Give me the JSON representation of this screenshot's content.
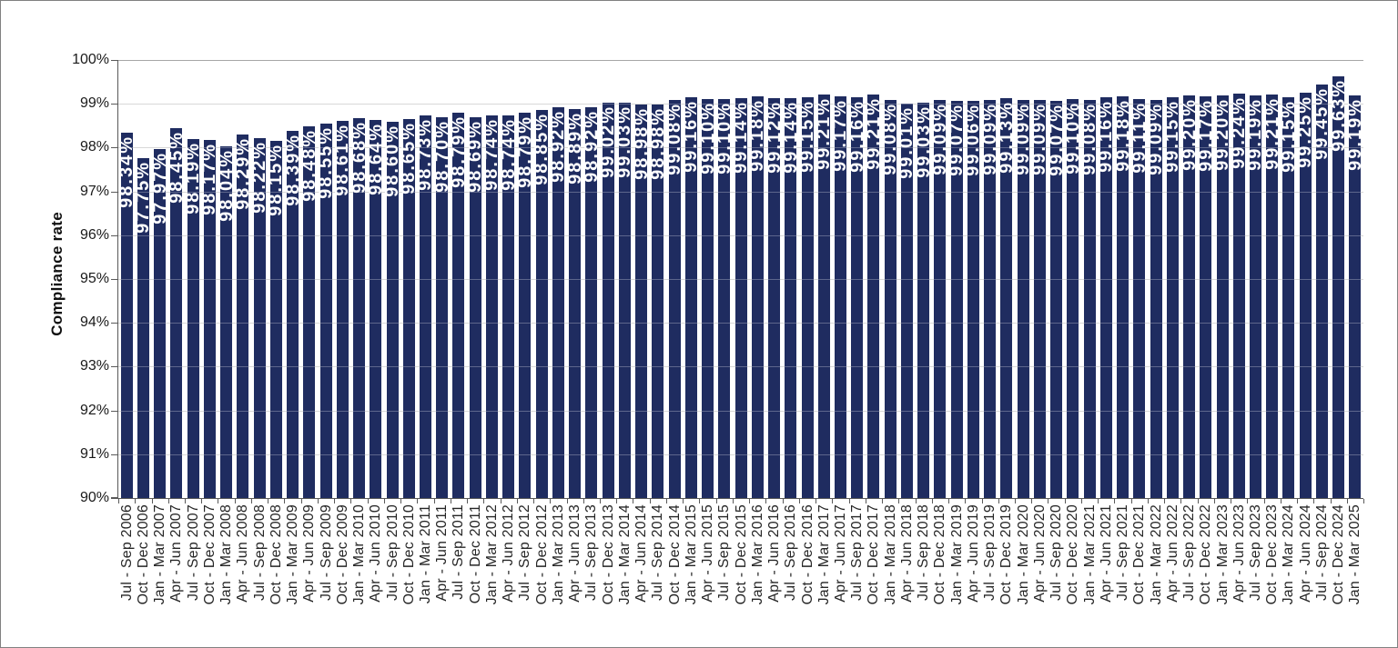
{
  "chart_data": {
    "type": "bar",
    "title": "",
    "xlabel": "",
    "ylabel": "Compliance rate",
    "ylim": [
      90,
      100
    ],
    "y_tick_labels": [
      "90%",
      "91%",
      "92%",
      "93%",
      "94%",
      "95%",
      "96%",
      "97%",
      "98%",
      "99%",
      "100%"
    ],
    "grid": true,
    "legend": "none",
    "value_label_format": "percent-2dp",
    "bar_color": "#1F2C60",
    "value_label_color": "#FFFFFF",
    "gridline_color": "#C9C9C9",
    "axis_color": "#595959",
    "categories": [
      "Jul - Sep 2006",
      "Oct - Dec 2006",
      "Jan - Mar 2007",
      "Apr - Jun 2007",
      "Jul - Sep 2007",
      "Oct - Dec 2007",
      "Jan - Mar 2008",
      "Apr - Jun 2008",
      "Jul - Sep 2008",
      "Oct - Dec 2008",
      "Jan - Mar 2009",
      "Apr - Jun 2009",
      "Jul - Sep 2009",
      "Oct - Dec 2009",
      "Jan - Mar 2010",
      "Apr - Jun 2010",
      "Jul - Sep 2010",
      "Oct - Dec 2010",
      "Jan - Mar 2011",
      "Apr - Jun 2011",
      "Jul - Sep 2011",
      "Oct - Dec 2011",
      "Jan - Mar 2012",
      "Apr - Jun 2012",
      "Jul - Sep 2012",
      "Oct - Dec 2012",
      "Jan - Mar 2013",
      "Apr - Jun 2013",
      "Jul - Sep 2013",
      "Oct - Dec 2013",
      "Jan - Mar 2014",
      "Apr - Jun 2014",
      "Jul - Sep 2014",
      "Oct - Dec 2014",
      "Jan - Mar 2015",
      "Apr - Jun 2015",
      "Jul - Sep 2015",
      "Oct - Dec 2015",
      "Jan - Mar 2016",
      "Apr - Jun 2016",
      "Jul - Sep 2016",
      "Oct - Dec 2016",
      "Jan - Mar 2017",
      "Apr - Jun 2017",
      "Jul - Sep 2017",
      "Oct - Dec 2017",
      "Jan - Mar 2018",
      "Apr - Jun 2018",
      "Jul - Sep 2018",
      "Oct - Dec 2018",
      "Jan - Mar 2019",
      "Apr - Jun 2019",
      "Jul - Sep 2019",
      "Oct - Dec 2019",
      "Jan - Mar 2020",
      "Apr - Jun 2020",
      "Jul - Sep 2020",
      "Oct - Dec 2020",
      "Jan - Mar 2021",
      "Apr - Jun 2021",
      "Jul - Sep 2021",
      "Oct - Dec 2021",
      "Jan - Mar 2022",
      "Apr - Jun 2022",
      "Jul - Sep 2022",
      "Oct - Dec 2022",
      "Jan - Mar 2023",
      "Apr - Jun 2023",
      "Jul - Sep 2023",
      "Oct - Dec 2023",
      "Jan - Mar 2024",
      "Apr - Jun 2024",
      "Jul - Sep 2024",
      "Oct - Dec 2024",
      "Jan - Mar 2025"
    ],
    "values": [
      98.34,
      97.75,
      97.97,
      98.45,
      98.19,
      98.17,
      98.04,
      98.29,
      98.22,
      98.15,
      98.39,
      98.48,
      98.55,
      98.61,
      98.68,
      98.64,
      98.6,
      98.65,
      98.73,
      98.7,
      98.79,
      98.69,
      98.74,
      98.74,
      98.79,
      98.85,
      98.92,
      98.89,
      98.92,
      99.02,
      99.03,
      98.98,
      98.98,
      99.08,
      99.16,
      99.1,
      99.1,
      99.14,
      99.18,
      99.12,
      99.14,
      99.15,
      99.21,
      99.17,
      99.16,
      99.21,
      99.08,
      99.01,
      99.03,
      99.09,
      99.07,
      99.06,
      99.09,
      99.13,
      99.09,
      99.09,
      99.07,
      99.1,
      99.08,
      99.16,
      99.18,
      99.11,
      99.09,
      99.15,
      99.2,
      99.17,
      99.2,
      99.24,
      99.19,
      99.21,
      99.15,
      99.25,
      99.45,
      99.63,
      99.19
    ]
  }
}
